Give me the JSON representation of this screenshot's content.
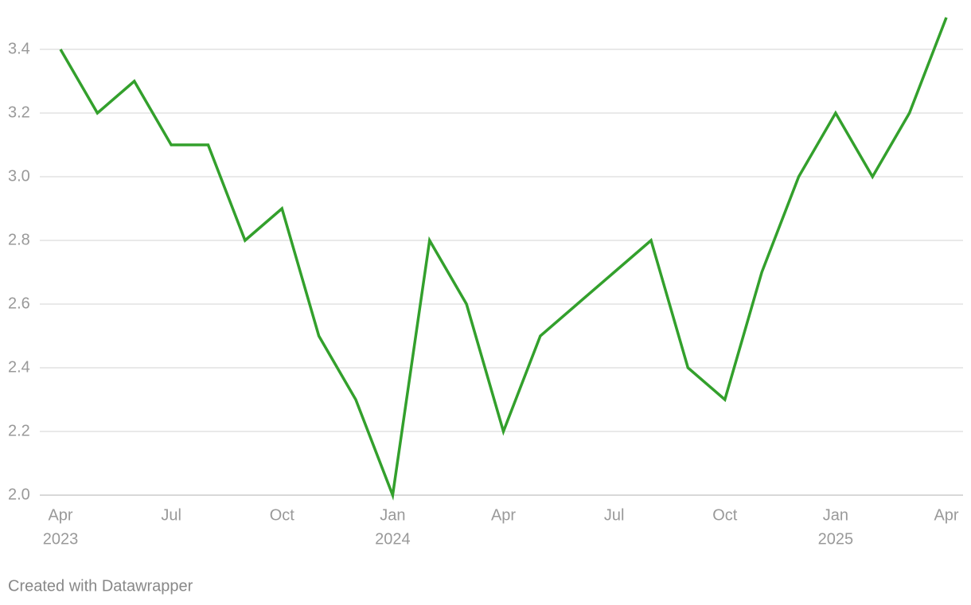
{
  "chart_data": {
    "type": "line",
    "x": [
      "2023-04",
      "2023-05",
      "2023-06",
      "2023-07",
      "2023-08",
      "2023-09",
      "2023-10",
      "2023-11",
      "2023-12",
      "2024-01",
      "2024-02",
      "2024-03",
      "2024-04",
      "2024-05",
      "2024-06",
      "2024-07",
      "2024-08",
      "2024-09",
      "2024-10",
      "2024-11",
      "2024-12",
      "2025-01",
      "2025-02",
      "2025-03",
      "2025-04"
    ],
    "series": [
      {
        "color": "#33a02c",
        "values": [
          3.4,
          3.2,
          3.3,
          3.1,
          3.1,
          2.8,
          2.9,
          2.5,
          2.3,
          2.0,
          2.8,
          2.6,
          2.2,
          2.5,
          2.6,
          2.7,
          2.8,
          2.4,
          2.3,
          2.7,
          3.0,
          3.2,
          3.0,
          3.2,
          3.5
        ]
      }
    ],
    "ylim": [
      2.0,
      3.5
    ],
    "yticks": [
      {
        "value": 2,
        "label": "2.0"
      },
      {
        "value": 2.2,
        "label": "2.2"
      },
      {
        "value": 2.4,
        "label": "2.4"
      },
      {
        "value": 2.6,
        "label": "2.6"
      },
      {
        "value": 2.8,
        "label": "2.8"
      },
      {
        "value": 3,
        "label": "3.0"
      },
      {
        "value": 3.2,
        "label": "3.2"
      },
      {
        "value": 3.4,
        "label": "3.4"
      }
    ],
    "xticks": [
      {
        "value": "2023-04",
        "label": [
          "Apr",
          "2023"
        ]
      },
      {
        "value": "2023-07",
        "label": [
          "Jul"
        ]
      },
      {
        "value": "2023-10",
        "label": [
          "Oct"
        ]
      },
      {
        "value": "2024-01",
        "label": [
          "Jan",
          "2024"
        ]
      },
      {
        "value": "2024-04",
        "label": [
          "Apr"
        ]
      },
      {
        "value": "2024-07",
        "label": [
          "Jul"
        ]
      },
      {
        "value": "2024-10",
        "label": [
          "Oct"
        ]
      },
      {
        "value": "2025-01",
        "label": [
          "Jan",
          "2025"
        ]
      },
      {
        "value": "2025-04",
        "label": [
          "Apr"
        ]
      }
    ],
    "grid": true,
    "footer": "Created with Datawrapper"
  }
}
